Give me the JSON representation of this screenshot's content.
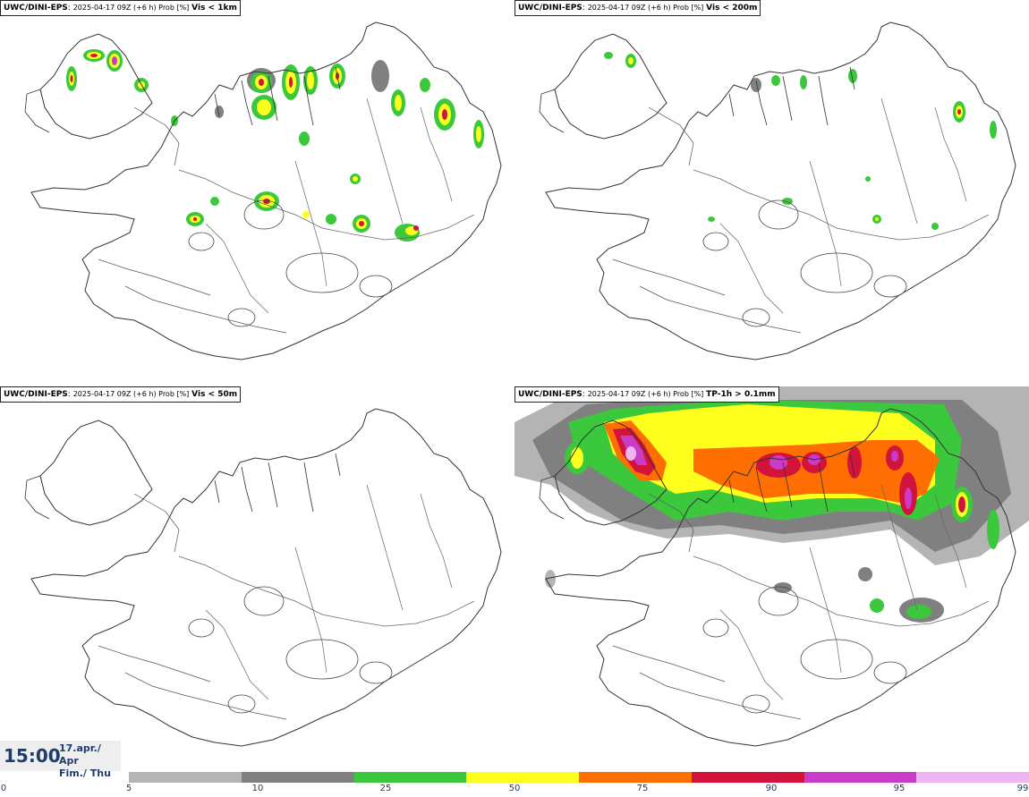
{
  "panels": [
    {
      "source": "UWC/DINI-EPS",
      "valid": "2025-04-17 09Z (+6 h) Prob [%]",
      "threshold": "Vis < 1km"
    },
    {
      "source": "UWC/DINI-EPS",
      "valid": "2025-04-17 09Z (+6 h) Prob [%]",
      "threshold": "Vis < 200m"
    },
    {
      "source": "UWC/DINI-EPS",
      "valid": "2025-04-17 09Z (+6 h) Prob [%]",
      "threshold": "Vis < 50m"
    },
    {
      "source": "UWC/DINI-EPS",
      "valid": "2025-04-17 09Z (+6 h) Prob [%]",
      "threshold": "TP-1h > 0.1mm"
    }
  ],
  "time_box": {
    "time": "15:00",
    "date_line1": "17.apr./ Apr",
    "date_line2": "Fim./ Thu"
  },
  "colorbar": {
    "ticks": [
      "0",
      "5",
      "10",
      "25",
      "50",
      "75",
      "90",
      "95",
      "99"
    ],
    "colors": [
      "#b4b4b4",
      "#808080",
      "#3cc83c",
      "#ffff1e",
      "#ff6e00",
      "#d2143c",
      "#c83cc8",
      "#f0b4f0"
    ]
  }
}
